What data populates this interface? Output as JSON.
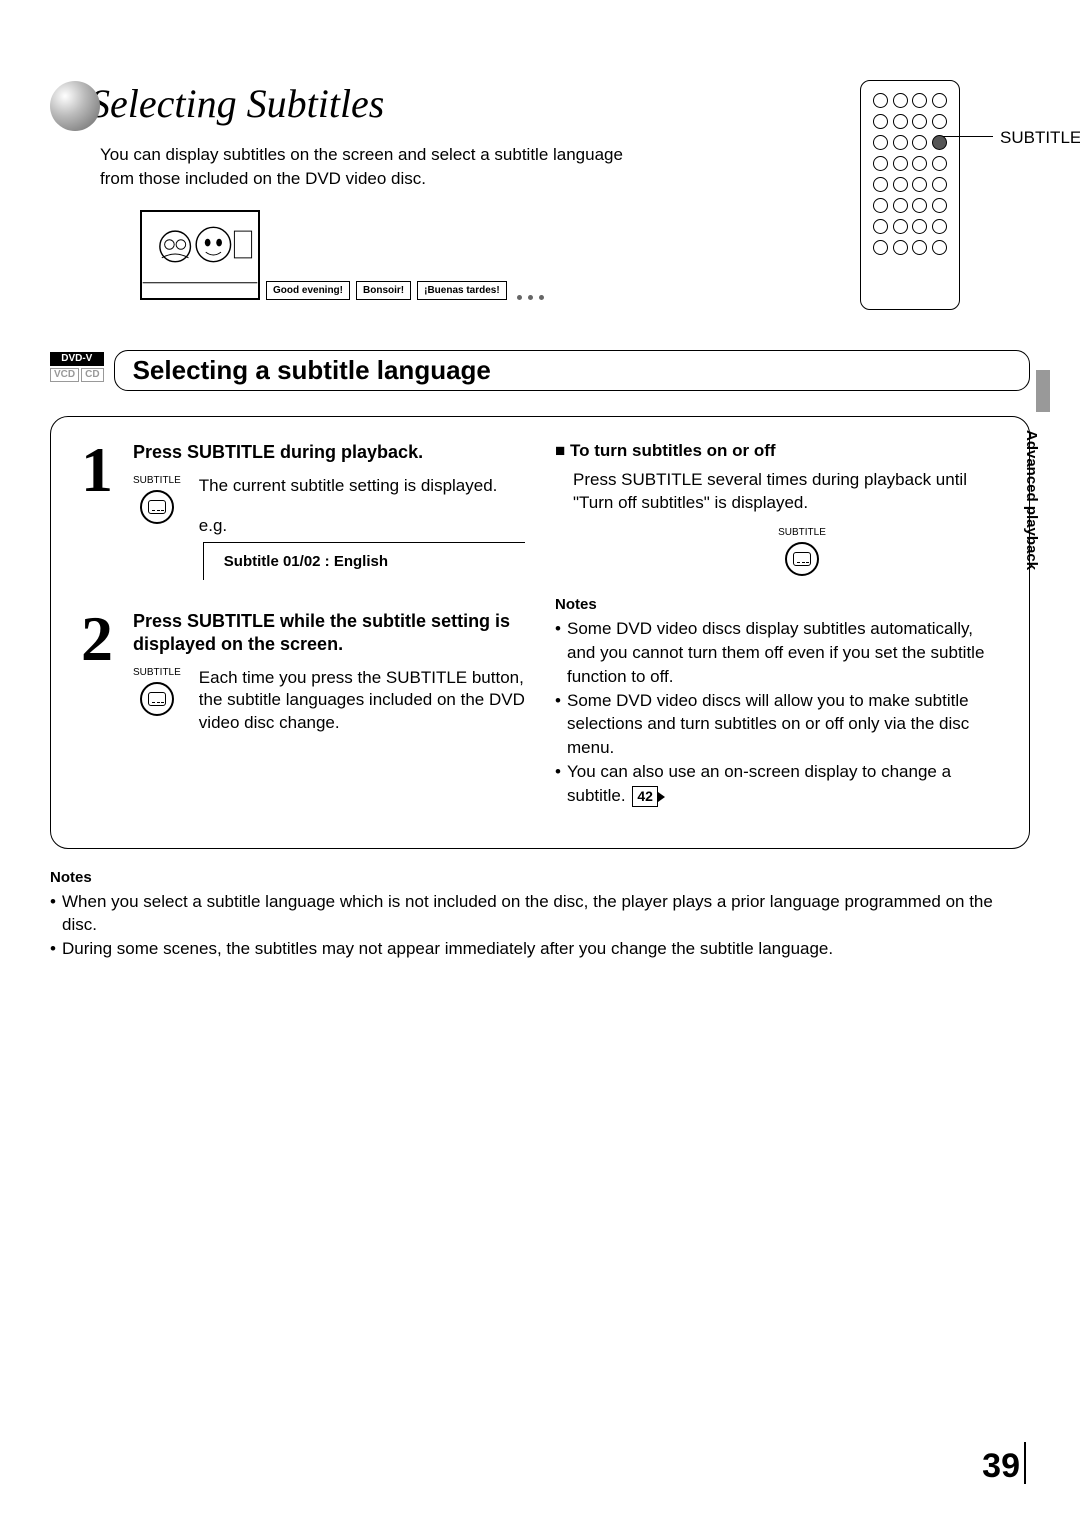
{
  "page": {
    "title": "Selecting Subtitles",
    "intro": "You can display subtitles on the screen and select a subtitle language from those included on the DVD video disc.",
    "sideTab": "Advanced playback",
    "pageNumber": "39"
  },
  "remote": {
    "calloutLabel": "SUBTITLE",
    "rows": 8,
    "cols": 4,
    "highlightRow": 2,
    "highlightCol": 3
  },
  "speech": {
    "bubbles": [
      "Good evening!",
      "Bonsoir!",
      "¡Buenas tardes!"
    ]
  },
  "section": {
    "discBadges": {
      "dvd": "DVD-V",
      "vcd": "VCD",
      "cd": "CD"
    },
    "title": "Selecting a subtitle language"
  },
  "steps": [
    {
      "number": "1",
      "heading": "Press SUBTITLE during playback.",
      "iconLabel": "SUBTITLE",
      "text": "The current subtitle setting is displayed.",
      "eg": {
        "label": "e.g.",
        "display": "Subtitle  01/02 :  English"
      }
    },
    {
      "number": "2",
      "heading": "Press SUBTITLE while the subtitle setting is displayed on the screen.",
      "iconLabel": "SUBTITLE",
      "text": "Each time you press the SUBTITLE button, the subtitle languages included on the DVD video disc change."
    }
  ],
  "rightCol": {
    "subHeading": "To turn subtitles on or off",
    "text": "Press SUBTITLE several times during playback until \"Turn off subtitles\" is displayed.",
    "iconLabel": "SUBTITLE",
    "notesHeading": "Notes",
    "notes": [
      "Some DVD video discs display subtitles automatically, and you cannot turn them off even if you set the subtitle function to off.",
      "Some DVD video discs will allow you to make subtitle selections and turn subtitles on or off only via the disc menu.",
      "You can also use an on-screen display to change a subtitle."
    ],
    "pageRef": "42"
  },
  "bottomNotes": {
    "heading": "Notes",
    "items": [
      "When you select a subtitle language which is not included on the disc, the player plays a prior language programmed on the disc.",
      "During some scenes, the subtitles may not appear immediately after you change the subtitle language."
    ]
  }
}
